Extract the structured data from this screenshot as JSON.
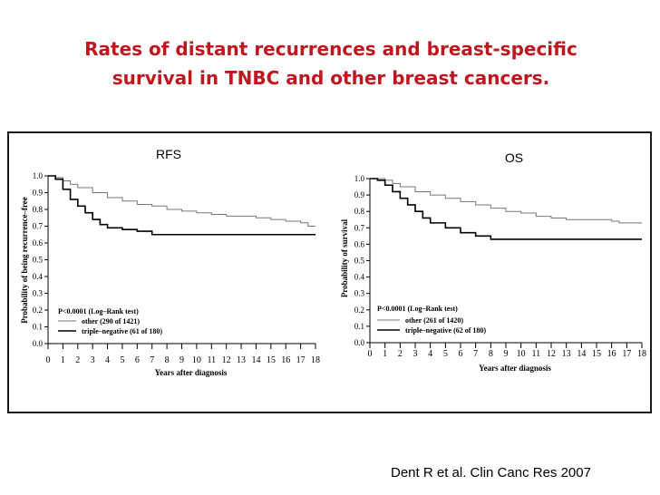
{
  "slide": {
    "title_line1": "Rates of distant recurrences and breast-specific",
    "title_line2": "survival in TNBC and other breast cancers."
  },
  "citation": "Dent R et al. Clin Canc Res 2007",
  "colors": {
    "title": "#c0171e",
    "other_curve": "#777777",
    "triple_curve": "#000000"
  },
  "chart_data": [
    {
      "type": "line",
      "panel_label": "RFS",
      "xlabel": "Years after diagnosis",
      "ylabel": "Probability of being recurrence–free",
      "xlim": [
        0,
        18
      ],
      "ylim": [
        0,
        1.0
      ],
      "x_ticks": [
        "0",
        "1",
        "2",
        "3",
        "4",
        "5",
        "6",
        "7",
        "8",
        "9",
        "10",
        "11",
        "12",
        "13",
        "14",
        "15",
        "16",
        "17",
        "18"
      ],
      "y_ticks": [
        "0.0",
        "0.1",
        "0.2",
        "0.3",
        "0.4",
        "0.5",
        "0.6",
        "0.7",
        "0.8",
        "0.9",
        "1.0"
      ],
      "annotation": "P<0.0001 (Log–Rank test)",
      "series": [
        {
          "name": "other (290 of 1421)",
          "x": [
            0,
            0.5,
            1,
            1.5,
            2,
            3,
            4,
            5,
            6,
            7,
            8,
            9,
            10,
            11,
            12,
            13,
            14,
            15,
            16,
            16.5,
            17,
            17.5,
            18
          ],
          "y": [
            1.0,
            0.99,
            0.97,
            0.95,
            0.93,
            0.9,
            0.87,
            0.85,
            0.83,
            0.82,
            0.8,
            0.79,
            0.78,
            0.77,
            0.76,
            0.76,
            0.75,
            0.74,
            0.73,
            0.73,
            0.72,
            0.7,
            0.7
          ]
        },
        {
          "name": "triple–negative (61 of 180)",
          "x": [
            0,
            0.5,
            1,
            1.5,
            2,
            2.5,
            3,
            3.5,
            4,
            5,
            6,
            7,
            8,
            10,
            12,
            14,
            16,
            18
          ],
          "y": [
            1.0,
            0.98,
            0.92,
            0.86,
            0.82,
            0.78,
            0.74,
            0.71,
            0.69,
            0.68,
            0.67,
            0.65,
            0.65,
            0.65,
            0.65,
            0.65,
            0.65,
            0.65
          ]
        }
      ]
    },
    {
      "type": "line",
      "panel_label": "OS",
      "xlabel": "Years after diagnosis",
      "ylabel": "Probability of survival",
      "xlim": [
        0,
        18
      ],
      "ylim": [
        0,
        1.0
      ],
      "x_ticks": [
        "0",
        "1",
        "2",
        "3",
        "4",
        "5",
        "6",
        "7",
        "8",
        "9",
        "10",
        "11",
        "12",
        "13",
        "14",
        "15",
        "16",
        "17",
        "18"
      ],
      "y_ticks": [
        "0.0",
        "0.1",
        "0.2",
        "0.3",
        "0.4",
        "0.5",
        "0.6",
        "0.7",
        "0.8",
        "0.9",
        "1.0"
      ],
      "annotation": "P<0.0001 (Log–Rank test)",
      "series": [
        {
          "name": "other (261 of 1420)",
          "x": [
            0,
            0.5,
            1,
            1.5,
            2,
            3,
            4,
            5,
            6,
            7,
            8,
            9,
            10,
            11,
            12,
            13,
            14,
            15,
            16,
            16.5,
            17,
            18
          ],
          "y": [
            1.0,
            1.0,
            0.99,
            0.97,
            0.95,
            0.92,
            0.9,
            0.88,
            0.86,
            0.84,
            0.82,
            0.8,
            0.79,
            0.77,
            0.76,
            0.75,
            0.75,
            0.75,
            0.74,
            0.73,
            0.73,
            0.73
          ]
        },
        {
          "name": "triple–negative (62 of 180)",
          "x": [
            0,
            0.5,
            1,
            1.5,
            2,
            2.5,
            3,
            3.5,
            4,
            5,
            6,
            7,
            8,
            10,
            12,
            14,
            16,
            18
          ],
          "y": [
            1.0,
            0.99,
            0.96,
            0.92,
            0.88,
            0.84,
            0.8,
            0.76,
            0.73,
            0.7,
            0.67,
            0.65,
            0.63,
            0.63,
            0.63,
            0.63,
            0.63,
            0.63
          ]
        }
      ]
    }
  ]
}
